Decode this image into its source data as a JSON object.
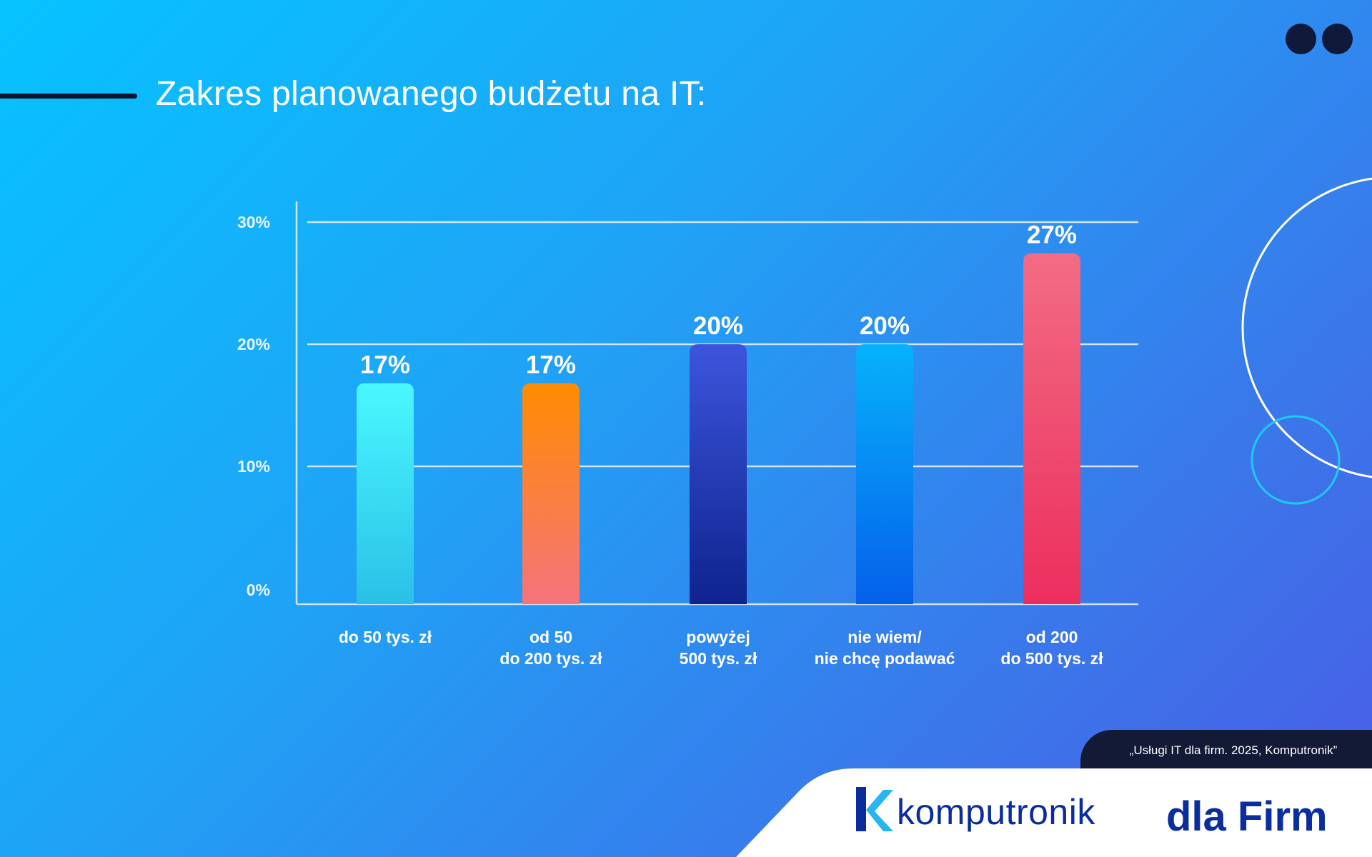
{
  "title": "Zakres planowanego budżetu na IT:",
  "source": "„Usługi IT dla firm. 2025, Komputronik”",
  "brand": {
    "name": "komputronik",
    "suffix": "dla Firm"
  },
  "chart_data": {
    "type": "bar",
    "title": "Zakres planowanego budżetu na IT:",
    "categories": [
      [
        "do 50 tys. zł"
      ],
      [
        "od 50",
        "do 200 tys. zł"
      ],
      [
        "powyżej",
        "500 tys. zł"
      ],
      [
        "nie wiem/",
        "nie chcę podawać"
      ],
      [
        "od 200",
        "do 500 tys. zł"
      ]
    ],
    "values": [
      17,
      17,
      20,
      20,
      27
    ],
    "value_labels": [
      "17%",
      "17%",
      "20%",
      "20%",
      "27%"
    ],
    "yticks": [
      0,
      10,
      20,
      30
    ],
    "ytick_labels": [
      "0%",
      "10%",
      "20%",
      "30%"
    ],
    "ylim": [
      0,
      30
    ],
    "grid": true,
    "colors": [
      [
        "#4af8ff",
        "#2ac0e6"
      ],
      [
        "#ff8c00",
        "#f5737c"
      ],
      [
        "#3c55dc",
        "#0e238e"
      ],
      [
        "#06b2fb",
        "#0560ea"
      ],
      [
        "#f26c84",
        "#ec2e5e"
      ]
    ]
  }
}
